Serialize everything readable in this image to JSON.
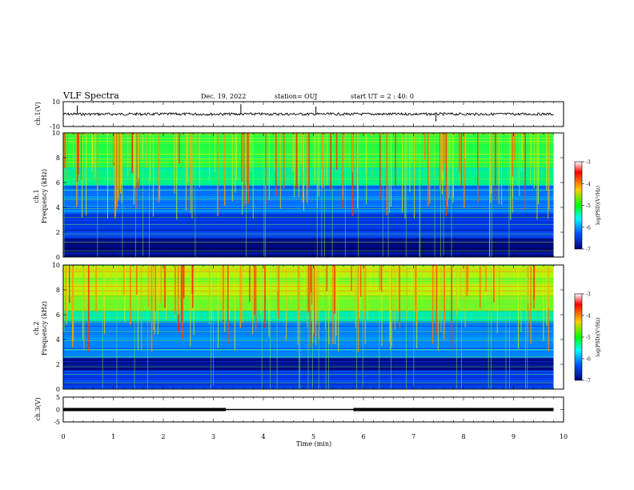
{
  "header": {
    "title": "VLF Spectra",
    "date": "Dec. 19, 2022",
    "station": "station= OUJ",
    "start": "start  UT =   2 : 40: 0"
  },
  "colorbar": {
    "label": "log(PSD)(V²/Hz)",
    "ticks": [
      "-3",
      "-4",
      "-5",
      "-6",
      "-7"
    ],
    "colors": [
      "#ffffff",
      "#ff0000",
      "#ffcc00",
      "#00ff00",
      "#00ffff",
      "#0055ff",
      "#000077"
    ]
  },
  "chart_data": [
    {
      "type": "line",
      "panel": "ch1-waveform",
      "ylabel": "ch.1(V)",
      "yticks": [
        "10",
        "-10"
      ],
      "ylim": [
        -10,
        10
      ],
      "xlim": [
        0,
        9.8
      ],
      "baseline": 0,
      "spikes": [
        {
          "x": 0.28,
          "y": 7
        },
        {
          "x": 3.55,
          "y": 8
        },
        {
          "x": 5.05,
          "y": 6
        },
        {
          "x": 7.45,
          "y": -6
        }
      ]
    },
    {
      "type": "heatmap",
      "panel": "ch1-spectrogram",
      "ylabel": "ch.1\nFrequency (kHz)",
      "yticks": [
        "0",
        "2",
        "4",
        "6",
        "8",
        "10"
      ],
      "ylim": [
        0,
        10
      ],
      "xlim": [
        0,
        9.8
      ],
      "zlim": [
        -7,
        -3
      ],
      "bands": [
        {
          "from": 0,
          "to": 1.5,
          "level": -6.9
        },
        {
          "from": 1.5,
          "to": 3.5,
          "level": -6.4
        },
        {
          "from": 3.5,
          "to": 5.8,
          "level": -6.1
        },
        {
          "from": 5.8,
          "to": 7.2,
          "level": -5.2
        },
        {
          "from": 7.2,
          "to": 10,
          "level": -4.9
        }
      ]
    },
    {
      "type": "heatmap",
      "panel": "ch2-spectrogram",
      "ylabel": "ch.2\nFrequency (kHz)",
      "yticks": [
        "0",
        "2",
        "4",
        "6",
        "8",
        "10"
      ],
      "ylim": [
        0,
        10
      ],
      "xlim": [
        0,
        9.8
      ],
      "zlim": [
        -7,
        -3
      ],
      "bands": [
        {
          "from": 0,
          "to": 1.5,
          "level": -6.4
        },
        {
          "from": 1.5,
          "to": 2.5,
          "level": -6.9
        },
        {
          "from": 2.5,
          "to": 5.5,
          "level": -6.0
        },
        {
          "from": 5.5,
          "to": 6.3,
          "level": -5.3
        },
        {
          "from": 6.3,
          "to": 7.5,
          "level": -4.7
        },
        {
          "from": 7.5,
          "to": 10,
          "level": -4.5
        }
      ]
    },
    {
      "type": "line",
      "panel": "ch3-waveform",
      "ylabel": "ch.3(V)",
      "yticks": [
        "5",
        "0",
        "-5"
      ],
      "ylim": [
        -5,
        5
      ],
      "xlim": [
        0,
        9.8
      ],
      "baseline": 0,
      "thick_segments": [
        [
          0,
          3.25
        ],
        [
          5.8,
          9.8
        ]
      ],
      "xlabel": "Time  (min)",
      "xticks": [
        "0",
        "1",
        "2",
        "3",
        "4",
        "5",
        "6",
        "7",
        "8",
        "9",
        "10"
      ]
    }
  ]
}
